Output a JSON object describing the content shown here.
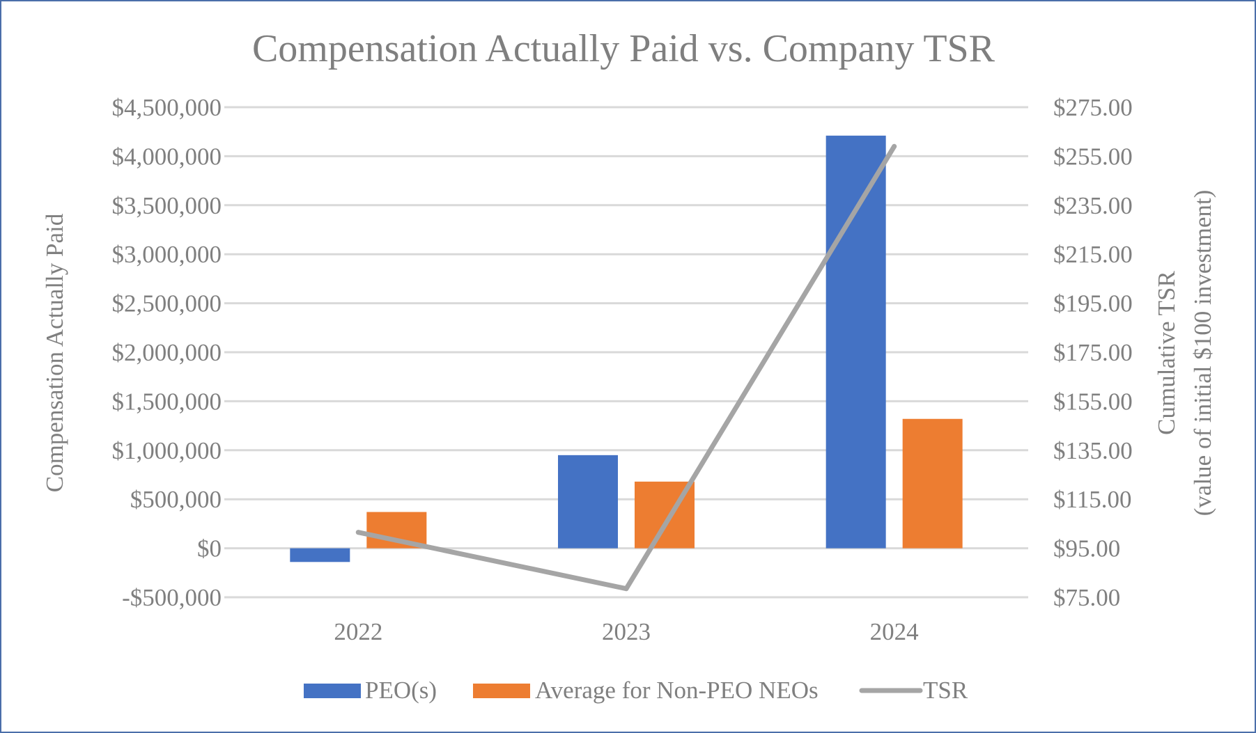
{
  "chart_data": {
    "type": "bar",
    "title": "Compensation Actually Paid vs. Company TSR",
    "categories": [
      "2022",
      "2023",
      "2024"
    ],
    "y_axis_left": {
      "label": "Compensation Actually Paid",
      "range": [
        -500000,
        4500000
      ],
      "ticks": [
        -500000,
        0,
        500000,
        1000000,
        1500000,
        2000000,
        2500000,
        3000000,
        3500000,
        4000000,
        4500000
      ],
      "tick_labels": [
        "-$500,000",
        "$0",
        "$500,000",
        "$1,000,000",
        "$1,500,000",
        "$2,000,000",
        "$2,500,000",
        "$3,000,000",
        "$3,500,000",
        "$4,000,000",
        "$4,500,000"
      ]
    },
    "y_axis_right": {
      "label_line1": "Cumulative TSR",
      "label_line2": "(value of initial $100 investment)",
      "range": [
        75,
        275
      ],
      "ticks": [
        75,
        95,
        115,
        135,
        155,
        175,
        195,
        215,
        235,
        255,
        275
      ],
      "tick_labels": [
        "$75.00",
        "$95.00",
        "$115.00",
        "$135.00",
        "$155.00",
        "$175.00",
        "$195.00",
        "$215.00",
        "$235.00",
        "$255.00",
        "$275.00"
      ]
    },
    "series": [
      {
        "name": "PEO(s)",
        "type": "bar",
        "axis": "left",
        "color": "#4472c4",
        "values": [
          -140000,
          950000,
          4210000
        ]
      },
      {
        "name": "Average for Non-PEO NEOs",
        "type": "bar",
        "axis": "left",
        "color": "#ed7d31",
        "values": [
          370000,
          680000,
          1320000
        ]
      },
      {
        "name": "TSR",
        "type": "line",
        "axis": "right",
        "color": "#a5a5a5",
        "values": [
          101.5,
          78.5,
          259
        ]
      }
    ],
    "grid": true,
    "legend_position": "bottom"
  },
  "colors": {
    "gridline": "#d9d9d9",
    "text": "#7f7f7f",
    "border": "#4a6ea9"
  }
}
